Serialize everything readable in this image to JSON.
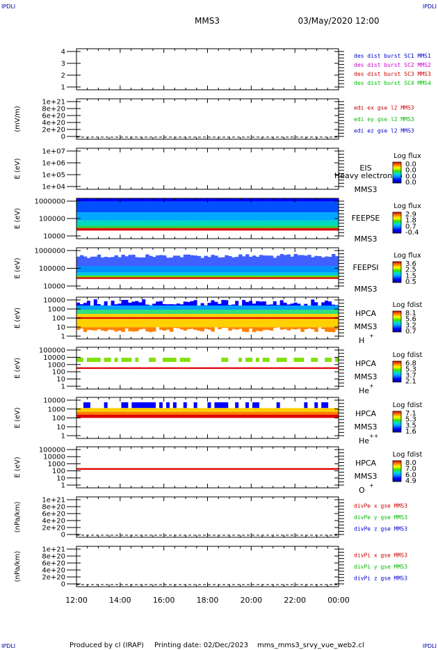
{
  "header": {
    "corner_tl": "IPDLI",
    "corner_tr": "IPDLI",
    "corner_bl": "IPDLI",
    "corner_br": "IPDLI",
    "spacecraft": "MMS3",
    "datetime": "03/May/2020 12:00"
  },
  "footer": {
    "produced_by": "Produced by cl (IRAP)",
    "printing_date": "Printing date: 02/Dec/2023",
    "filename": "mms_mms3_srvy_vue_web2.cl"
  },
  "chart_data": {
    "type": "heatmap",
    "time_axis": {
      "ticks": [
        "12:00",
        "14:00",
        "16:00",
        "18:00",
        "20:00",
        "22:00",
        "00:00"
      ],
      "range_hours": [
        12,
        24
      ]
    },
    "panels": [
      {
        "id": "dist-burst",
        "kind": "lines",
        "ylabel": "",
        "ticks": [
          "4",
          "3",
          "2",
          "1"
        ],
        "ylim": [
          0.5,
          4.5
        ],
        "legend": [
          {
            "text": "des dist burst SC1 MMS1",
            "color": "#0000cc"
          },
          {
            "text": "des dist burst SC2 MMS2",
            "color": "#cc00cc"
          },
          {
            "text": "des dist burst SC3 MMS3",
            "color": "#cc0000"
          },
          {
            "text": "des dist burst SC4 MMS4",
            "color": "#00bb00"
          }
        ]
      },
      {
        "id": "edi-e",
        "kind": "lines",
        "ylabel": "(mV/m)",
        "ticks": [
          "1e+21",
          "8e+20",
          "6e+20",
          "4e+20",
          "2e+20",
          "0"
        ],
        "ylim": [
          0,
          1e+21
        ],
        "zero_line": true,
        "legend": [
          {
            "text": "edi ex gse l2 MMS3",
            "color": "#cc0000"
          },
          {
            "text": "edi ey gse l2 MMS3",
            "color": "#00bb00"
          },
          {
            "text": "edi ez gse l2 MMS3",
            "color": "#0000cc"
          }
        ]
      },
      {
        "id": "eis",
        "kind": "spectrogram",
        "ylabel": "E (eV)",
        "ticks": [
          "1e+07",
          "1e+06",
          "1e+05",
          "1e+04"
        ],
        "log": true,
        "ylim": [
          10000,
          10000000
        ],
        "right_labels": [
          "EIS",
          "MMS3"
        ],
        "overlay_text": "Heavy electron to",
        "cbar_title": "Log flux",
        "cbar_ticks": [
          "0.0",
          "0.0",
          "0.0",
          "0.0"
        ],
        "empty": true
      },
      {
        "id": "feeps-e",
        "kind": "spectrogram",
        "ylabel": "E (eV)",
        "ticks": [
          "1000000",
          "100000",
          "10000"
        ],
        "log": true,
        "ylim": [
          10000,
          1000000
        ],
        "right_labels": [
          "FEEPSE",
          "MMS3"
        ],
        "cbar_title": "Log flux",
        "cbar_ticks": [
          "2.9",
          "1.8",
          "0.7",
          "-0.4"
        ]
      },
      {
        "id": "feeps-i",
        "kind": "spectrogram",
        "ylabel": "E (eV)",
        "ticks": [
          "1000000",
          "100000",
          "10000"
        ],
        "log": true,
        "ylim": [
          10000,
          1000000
        ],
        "right_labels": [
          "FEEPSI",
          "MMS3"
        ],
        "cbar_title": "Log flux",
        "cbar_ticks": [
          "3.6",
          "2.5",
          "1.5",
          "0.5"
        ]
      },
      {
        "id": "hpca-h",
        "kind": "spectrogram",
        "ylabel": "E (eV)",
        "ticks": [
          "10000",
          "1000",
          "100",
          "10",
          "1"
        ],
        "log": true,
        "ylim": [
          1,
          40000
        ],
        "right_labels": [
          "HPCA",
          "MMS3"
        ],
        "species": "H",
        "charge": "+",
        "cbar_title": "Log fdist",
        "cbar_ticks": [
          "8.1",
          "5.6",
          "3.2",
          "0.7"
        ]
      },
      {
        "id": "hpca-he",
        "kind": "spectrogram",
        "ylabel": "E (eV)",
        "ticks": [
          "100000",
          "10000",
          "1000",
          "100",
          "10",
          "1"
        ],
        "log": true,
        "ylim": [
          1,
          100000
        ],
        "right_labels": [
          "HPCA",
          "MMS3"
        ],
        "species": "He",
        "charge": "+",
        "cbar_title": "Log fdist",
        "cbar_ticks": [
          "6.8",
          "5.3",
          "3.7",
          "2.1"
        ]
      },
      {
        "id": "hpca-he2",
        "kind": "spectrogram",
        "ylabel": "E (eV)",
        "ticks": [
          "10000",
          "1000",
          "100",
          "10",
          "1"
        ],
        "log": true,
        "ylim": [
          1,
          40000
        ],
        "right_labels": [
          "HPCA",
          "MMS3"
        ],
        "species": "He",
        "charge": "++",
        "cbar_title": "Log fdist",
        "cbar_ticks": [
          "7.1",
          "5.3",
          "3.5",
          "1.6"
        ]
      },
      {
        "id": "hpca-o",
        "kind": "spectrogram",
        "ylabel": "E (eV)",
        "ticks": [
          "100000",
          "10000",
          "1000",
          "100",
          "10",
          "1"
        ],
        "log": true,
        "ylim": [
          1,
          100000
        ],
        "right_labels": [
          "HPCA",
          "MMS3"
        ],
        "species": "O",
        "charge": "+",
        "cbar_title": "Log fdist",
        "cbar_ticks": [
          "8.0",
          "7.0",
          "6.0",
          "4.9"
        ]
      },
      {
        "id": "divpe",
        "kind": "lines",
        "ylabel": "(nPa/km)",
        "ticks": [
          "1e+21",
          "8e+20",
          "6e+20",
          "4e+20",
          "2e+20",
          "0"
        ],
        "ylim": [
          0,
          1e+21
        ],
        "zero_line": true,
        "legend": [
          {
            "text": "divPe x gse MMS3",
            "color": "#cc0000"
          },
          {
            "text": "divPe y gse MMS3",
            "color": "#00bb00"
          },
          {
            "text": "divPe z gse MMS3",
            "color": "#0000cc"
          }
        ]
      },
      {
        "id": "divpi",
        "kind": "lines",
        "ylabel": "(nPa/km)",
        "ticks": [
          "1e+21",
          "8e+20",
          "6e+20",
          "4e+20",
          "2e+20",
          "0"
        ],
        "ylim": [
          0,
          1e+21
        ],
        "zero_line": true,
        "legend": [
          {
            "text": "divPi x gse MMS3",
            "color": "#cc0000"
          },
          {
            "text": "divPi y gse MMS3",
            "color": "#00bb00"
          },
          {
            "text": "divPi z gse MMS3",
            "color": "#0000cc"
          }
        ]
      }
    ]
  }
}
